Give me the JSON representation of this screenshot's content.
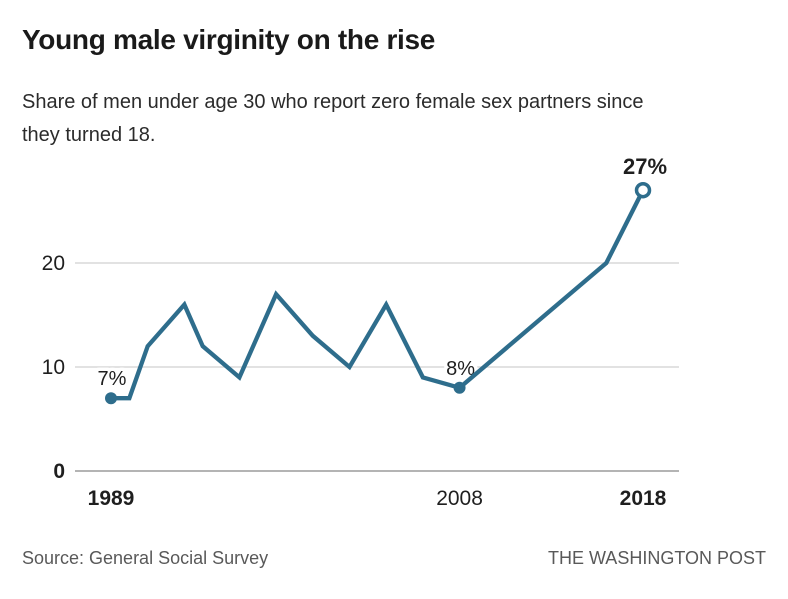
{
  "header": {
    "title": "Young male virginity on the rise",
    "subtitle_line1": "Share of men under age 30 who report zero female sex partners since",
    "subtitle_line2": "they turned 18."
  },
  "footer": {
    "source": "Source: General Social Survey",
    "credit": "THE WASHINGTON POST"
  },
  "chart_data": {
    "type": "line",
    "title": "Young male virginity on the rise",
    "subtitle": "Share of men under age 30 who report zero female sex partners since they turned 18.",
    "series_name": "Share of men under 30 reporting zero female sex partners since age 18 (%)",
    "x": [
      1989,
      1990,
      1991,
      1993,
      1994,
      1996,
      1998,
      2000,
      2002,
      2004,
      2006,
      2008,
      2016,
      2018
    ],
    "values": [
      7,
      7,
      12,
      16,
      12,
      9,
      17,
      13,
      10,
      16,
      9,
      8,
      20,
      27
    ],
    "xlabel": "",
    "ylabel": "",
    "xlim": [
      1987.5,
      2020
    ],
    "ylim": [
      0,
      29
    ],
    "yticks": [
      {
        "value": 20,
        "label": "20",
        "bold": false
      },
      {
        "value": 10,
        "label": "10",
        "bold": false
      },
      {
        "value": 0,
        "label": "0",
        "bold": true
      }
    ],
    "xticks": [
      {
        "value": 1989,
        "label": "1989",
        "bold": true
      },
      {
        "value": 2008,
        "label": "2008",
        "bold": false
      },
      {
        "value": 2018,
        "label": "2018",
        "bold": true
      }
    ],
    "grid": "horizontal-light",
    "legend": "none",
    "annotations": [
      {
        "x": 1989,
        "y": 7,
        "label": "7%",
        "marker": "filled-dot",
        "bold": false
      },
      {
        "x": 2008,
        "y": 8,
        "label": "8%",
        "marker": "filled-dot",
        "bold": false
      },
      {
        "x": 2018,
        "y": 27,
        "label": "27%",
        "marker": "open-dot",
        "bold": true
      }
    ],
    "colors": {
      "line": "#2e6d8c",
      "gridline": "#d8d8d8",
      "baseline": "#9b9b9b",
      "label_text": "#1f1f1f"
    }
  }
}
